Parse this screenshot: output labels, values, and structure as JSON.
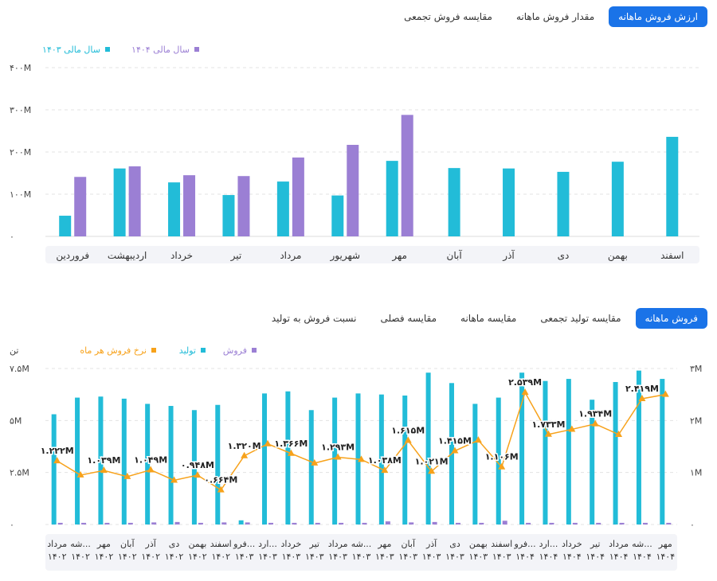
{
  "top_tabs": {
    "t1": "ارزش فروش ماهانه",
    "t2": "مقدار فروش ماهانه",
    "t3": "مقایسه فروش تجمعی"
  },
  "bottom_tabs": {
    "t1": "فروش ماهانه",
    "t2": "مقایسه تولید تجمعی",
    "t3": "مقایسه ماهانه",
    "t4": "مقایسه فصلی",
    "t5": "نسبت فروش به تولید"
  },
  "colors": {
    "accent": "#1a73e8",
    "teal": "#22bcd8",
    "purple": "#9b7fd4",
    "orange": "#f7a21b"
  },
  "chart_data": [
    {
      "type": "bar",
      "categories": [
        "فروردین",
        "اردیبهشت",
        "خرداد",
        "تیر",
        "مرداد",
        "شهریور",
        "مهر",
        "آبان",
        "آذر",
        "دی",
        "بهمن",
        "اسفند"
      ],
      "series": [
        {
          "name": "سال مالی ۱۴۰۳",
          "color": "#22bcd8",
          "values": [
            49,
            161,
            128,
            98,
            130,
            97,
            179,
            162,
            161,
            153,
            177,
            236
          ]
        },
        {
          "name": "سال مالی ۱۴۰۴",
          "color": "#9b7fd4",
          "values": [
            141,
            166,
            145,
            143,
            187,
            217,
            288,
            null,
            null,
            null,
            null,
            null
          ]
        }
      ],
      "ylim": [
        0,
        400
      ],
      "yticks": [
        "۰",
        "۱۰۰M",
        "۲۰۰M",
        "۳۰۰M",
        "۴۰۰M"
      ],
      "grid": true,
      "legend": "top-left"
    },
    {
      "type": "bar",
      "categories": [
        [
          "مرداد",
          "۱۴۰۲"
        ],
        [
          "شه...",
          "۱۴۰۲"
        ],
        [
          "مهر",
          "۱۴۰۲"
        ],
        [
          "آبان",
          "۱۴۰۲"
        ],
        [
          "آذر",
          "۱۴۰۲"
        ],
        [
          "دی",
          "۱۴۰۲"
        ],
        [
          "بهمن",
          "۱۴۰۲"
        ],
        [
          "اسفند",
          "۱۴۰۲"
        ],
        [
          "فرو...",
          "۱۴۰۳"
        ],
        [
          "ارد...",
          "۱۴۰۳"
        ],
        [
          "خرداد",
          "۱۴۰۳"
        ],
        [
          "تیر",
          "۱۴۰۳"
        ],
        [
          "مرداد",
          "۱۴۰۳"
        ],
        [
          "شه...",
          "۱۴۰۳"
        ],
        [
          "مهر",
          "۱۴۰۳"
        ],
        [
          "آبان",
          "۱۴۰۳"
        ],
        [
          "آذر",
          "۱۴۰۳"
        ],
        [
          "دی",
          "۱۴۰۳"
        ],
        [
          "بهمن",
          "۱۴۰۳"
        ],
        [
          "اسفند",
          "۱۴۰۳"
        ],
        [
          "فرو...",
          "۱۴۰۴"
        ],
        [
          "ارد...",
          "۱۴۰۴"
        ],
        [
          "خرداد",
          "۱۴۰۴"
        ],
        [
          "تیر",
          "۱۴۰۴"
        ],
        [
          "مرداد",
          "۱۴۰۴"
        ],
        [
          "شه...",
          "۱۴۰۴"
        ],
        [
          "مهر",
          "۱۴۰۴"
        ]
      ],
      "series": [
        {
          "name": "تولید",
          "color": "#22bcd8",
          "axis": "left",
          "values": [
            5.3,
            6.1,
            6.15,
            6.05,
            5.8,
            5.7,
            5.5,
            5.75,
            0.2,
            6.3,
            6.4,
            5.5,
            6.1,
            6.3,
            6.25,
            6.2,
            7.3,
            6.8,
            5.8,
            6.1,
            7.3,
            6.9,
            7.0,
            6.0,
            6.85,
            7.4,
            7.0
          ]
        },
        {
          "name": "فروش",
          "color": "#9b7fd4",
          "axis": "left",
          "values": [
            0.08,
            0.08,
            0.08,
            0.08,
            0.1,
            0.12,
            0.08,
            0.1,
            0.1,
            0.08,
            0.08,
            0.08,
            0.08,
            0.08,
            0.15,
            0.1,
            0.12,
            0.08,
            0.08,
            0.18,
            0.08,
            0.08,
            0.08,
            0.08,
            0.08,
            0.08,
            0.08
          ]
        },
        {
          "name": "نرخ فروش هر ماه",
          "color": "#f7a21b",
          "axis": "right",
          "type": "line",
          "values": [
            1.222,
            0.95,
            1.039,
            0.92,
            1.049,
            0.85,
            0.948,
            0.664,
            1.32,
            1.55,
            1.366,
            1.18,
            1.293,
            1.25,
            1.038,
            1.615,
            1.021,
            1.415,
            1.62,
            1.106,
            2.539,
            1.733,
            1.83,
            1.934,
            1.73,
            2.419,
            2.5
          ],
          "labels": [
            "۱.۲۲۲M",
            "",
            "۱.۰۳۹M",
            "",
            "۱.۰۴۹M",
            "",
            "۰.۹۴۸M",
            "۰.۶۶۴M",
            "۱.۳۲۰M",
            "",
            "۱.۳۶۶M",
            "",
            "۱.۲۹۳M",
            "",
            "۱.۰۳۸M",
            "۱.۶۱۵M",
            "۱.۰۲۱M",
            "۱.۴۱۵M",
            "",
            "۱.۱۰۶M",
            "۲.۵۳۹M",
            "۱.۷۳۳M",
            "",
            "۱.۹۳۴M",
            "",
            "۲.۴۱۹M",
            ""
          ]
        }
      ],
      "ylim_left": [
        0,
        7.5
      ],
      "ylim_right": [
        0,
        3
      ],
      "yticks_left": [
        "۰",
        "۲.۵M",
        "۵M",
        "۷.۵M"
      ],
      "yticks_right": [
        "۰",
        "۱M",
        "۲M",
        "۳M"
      ],
      "ylabel_left": "تن",
      "grid": true,
      "legend": "top-left"
    }
  ]
}
